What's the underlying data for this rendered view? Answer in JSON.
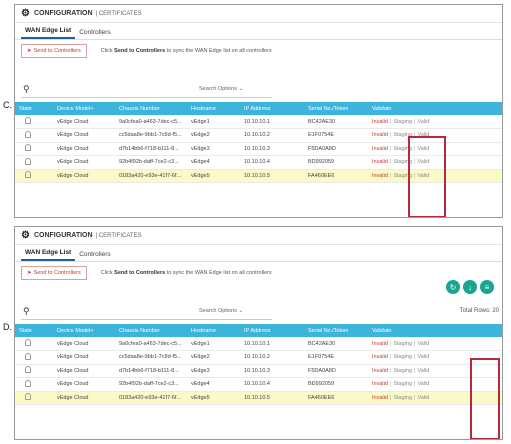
{
  "options": [
    {
      "letter": "C.",
      "header": {
        "title": "CONFIGURATION",
        "sub": "| CERTIFICATES"
      },
      "tabs": [
        {
          "label": "WAN Edge List",
          "active": true
        },
        {
          "label": "Controllers",
          "active": false
        }
      ],
      "send_button": "Send to Controllers",
      "hint_pre": "Click ",
      "hint_bold": "Send to Controllers",
      "hint_post": " to sync the WAN Edge list on all controllers",
      "search_options": "Search Options",
      "total_rows": "",
      "columns": [
        "State",
        "Device Model+",
        "Chassis Number",
        "Hostname",
        "IP Address",
        "Serial No./Token",
        "Validate"
      ],
      "rows": [
        {
          "model": "vEdge Cloud",
          "chassis": "9a0cfea0-a463-7dec-c5...",
          "host": "vEdge1",
          "ip": "10.10.10.1",
          "serial": "BC42AE30"
        },
        {
          "model": "vEdge Cloud",
          "chassis": "cc5daa8e-9bb1-7c9d-f5...",
          "host": "vEdge2",
          "ip": "10.10.10.2",
          "serial": "E1F0754E"
        },
        {
          "model": "vEdge Cloud",
          "chassis": "d7b14bb6-f718-b111-8...",
          "host": "vEdge3",
          "ip": "10.10.10.3",
          "serial": "F5DA0A8D"
        },
        {
          "model": "vEdge Cloud",
          "chassis": "92b4f92b-daff-7ce2-c3...",
          "host": "vEdge4",
          "ip": "10.10.10.4",
          "serial": "BD992059"
        },
        {
          "model": "vEdge Cloud",
          "chassis": "0183a420-e93e-41f7-6f...",
          "host": "vEdge5",
          "ip": "10.10.10.5",
          "serial": "FA460EE6"
        }
      ],
      "validate": {
        "invalid": "Invalid",
        "staging": "Staging",
        "valid": "Valid",
        "sep": "|"
      },
      "highlight": "invalid"
    },
    {
      "letter": "D.",
      "header": {
        "title": "CONFIGURATION",
        "sub": "| CERTIFICATES"
      },
      "tabs": [
        {
          "label": "WAN Edge List",
          "active": true
        },
        {
          "label": "Controllers",
          "active": false
        }
      ],
      "send_button": "Send to Controllers",
      "hint_pre": "Click ",
      "hint_bold": "Send to Controllers",
      "hint_post": " to sync the WAN Edge list on all controllers",
      "search_options": "Search Options",
      "total_rows": "Total Rows: 20",
      "columns": [
        "State",
        "Device Model+",
        "Chassis Number",
        "Hostname",
        "IP Address",
        "Serial No./Token",
        "Validate"
      ],
      "rows": [
        {
          "model": "vEdge Cloud",
          "chassis": "9a0cfea0-a463-7dec-c5...",
          "host": "vEdge1",
          "ip": "10.10.10.1",
          "serial": "BC42AE30"
        },
        {
          "model": "vEdge Cloud",
          "chassis": "cc5daa8e-9bb1-7c9d-f5...",
          "host": "vEdge2",
          "ip": "10.10.10.2",
          "serial": "E1F0754E"
        },
        {
          "model": "vEdge Cloud",
          "chassis": "d7b14bb6-f718-b111-8...",
          "host": "vEdge3",
          "ip": "10.10.10.3",
          "serial": "F5DA0A8D"
        },
        {
          "model": "vEdge Cloud",
          "chassis": "92b4f92b-daff-7ce2-c3...",
          "host": "vEdge4",
          "ip": "10.10.10.4",
          "serial": "BD992059"
        },
        {
          "model": "vEdge Cloud",
          "chassis": "0183a420-e93e-41f7-6f...",
          "host": "vEdge5",
          "ip": "10.10.10.5",
          "serial": "FA460EE6"
        }
      ],
      "validate": {
        "invalid": "Invalid",
        "staging": "Staging",
        "valid": "Valid",
        "sep": "|"
      },
      "highlight": "valid"
    }
  ],
  "colors": {
    "table_header": "#3db4dc",
    "highlight_box": "#b8283a",
    "action_buttons": "#1aa58e"
  },
  "icons": {
    "header": "gear-icon",
    "search": "search-icon",
    "state": "lightbulb-icon",
    "actions": [
      "refresh-icon",
      "download-icon",
      "menu-icon"
    ]
  }
}
